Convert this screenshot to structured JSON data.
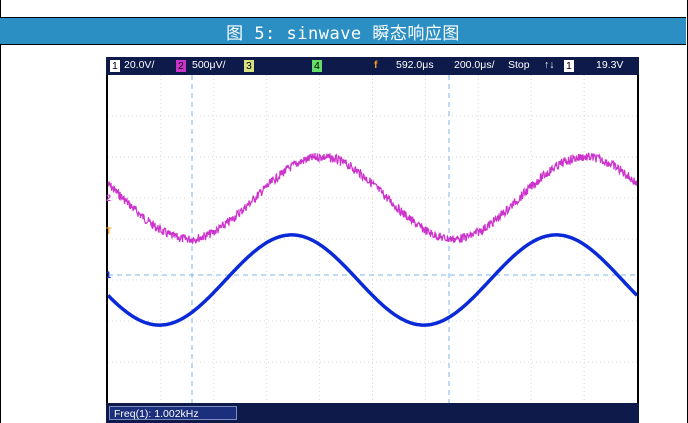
{
  "caption": "图 5: sinwave 瞬态响应图",
  "scope": {
    "ch1_num": "1",
    "ch1_scale": "20.0V/",
    "ch2_num": "2",
    "ch2_scale": "500μV/",
    "ch3_num": "3",
    "ch4_num": "4",
    "trigger_time": "592.0μs",
    "timebase": "200.0μs/",
    "run_state": "Stop",
    "trigger_src": "1",
    "trigger_level": "19.3V",
    "freq_readout": "Freq(1): 1.002kHz",
    "marker_ch2": "2",
    "marker_t": "T",
    "marker_ch1": "1"
  },
  "colors": {
    "ch1": "#0a2ad8",
    "ch2": "#cc33cc",
    "ch3": "#d8e080",
    "ch4": "#66dd66",
    "caption_bg": "#2b8fc4"
  },
  "chart_data": {
    "type": "line",
    "x_divisions": 10,
    "y_divisions": 8,
    "series": [
      {
        "name": "",
        "channel": "2",
        "amplitude_div": 1.0,
        "offset_div": 1.0,
        "cycles": 2,
        "phase_deg": 160,
        "noise": true
      },
      {
        "name": "",
        "channel": "1",
        "amplitude_div": 1.1,
        "offset_div": -1.0,
        "cycles": 2,
        "phase_deg": 200,
        "noise": false
      }
    ]
  }
}
